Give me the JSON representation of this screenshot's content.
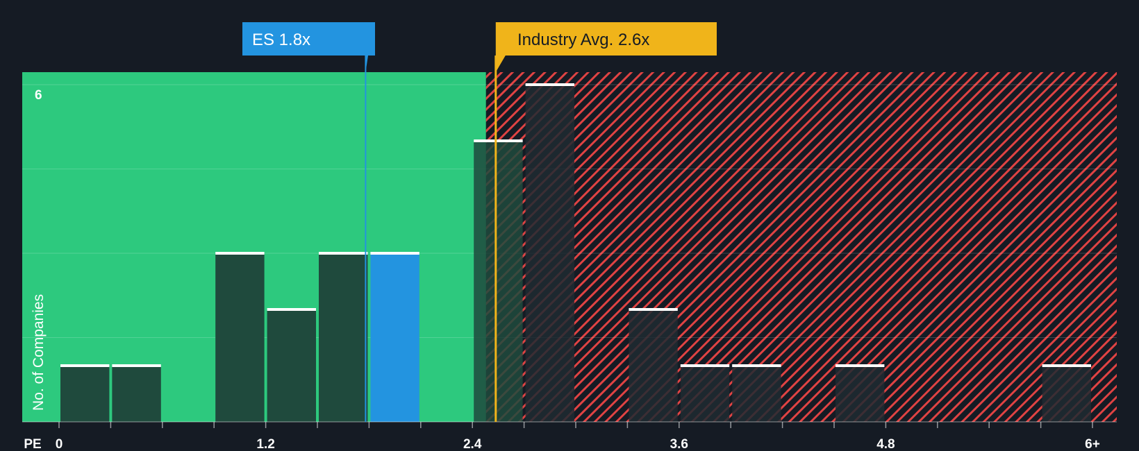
{
  "colors": {
    "background": "#151b24",
    "undervalued_zone": "#2dc97e",
    "overvalued_hatch": "#e04343",
    "bar": "#1f4a3d",
    "bar_overvalued": "#1e2a31",
    "highlight_bar": "#2394e0",
    "company_callout": "#2394e0",
    "industry_callout": "#f0b41a"
  },
  "chart_data": {
    "type": "bar",
    "xlabel": "PE",
    "ylabel": "No. of Companies",
    "x_ticks": [
      "0",
      "1.2",
      "2.4",
      "3.6",
      "4.8",
      "6+"
    ],
    "y_ticks": [
      "6"
    ],
    "ylim": [
      0,
      6
    ],
    "bins": [
      {
        "x": 0.15,
        "value": 1
      },
      {
        "x": 0.45,
        "value": 1
      },
      {
        "x": 0.75,
        "value": 0
      },
      {
        "x": 1.05,
        "value": 3
      },
      {
        "x": 1.35,
        "value": 2
      },
      {
        "x": 1.65,
        "value": 3
      },
      {
        "x": 1.95,
        "value": 3,
        "highlight": true
      },
      {
        "x": 2.25,
        "value": 0
      },
      {
        "x": 2.55,
        "value": 5
      },
      {
        "x": 2.85,
        "value": 6
      },
      {
        "x": 3.15,
        "value": 0
      },
      {
        "x": 3.45,
        "value": 2
      },
      {
        "x": 3.75,
        "value": 1
      },
      {
        "x": 4.05,
        "value": 1
      },
      {
        "x": 4.35,
        "value": 0
      },
      {
        "x": 4.65,
        "value": 1
      },
      {
        "x": 4.95,
        "value": 0
      },
      {
        "x": 5.25,
        "value": 0
      },
      {
        "x": 5.55,
        "value": 0
      },
      {
        "x": 5.85,
        "value": 1
      }
    ],
    "company": {
      "label": "ES 1.8x",
      "value": 1.8
    },
    "industry": {
      "label": "Industry Avg. 2.6x",
      "value": 2.6
    }
  }
}
